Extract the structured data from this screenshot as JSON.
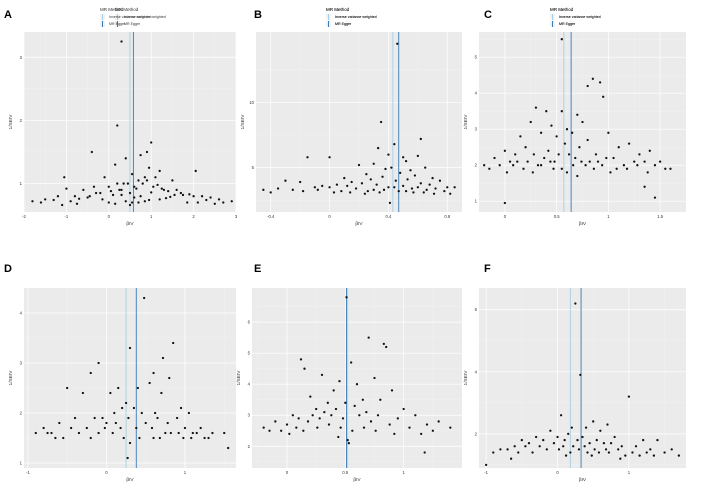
{
  "figure": {
    "legend_title": "MR Method",
    "legend_items": [
      "Inverse variance weighted",
      "MR Egger"
    ]
  },
  "colors": {
    "panel_bg": "#ebebeb",
    "grid_major": "#ffffff",
    "grid_minor": "#f4f4f4",
    "point": "#111111",
    "ivw_line": "#a9cfe3",
    "egger_line": "#3a7ab5",
    "label": "#333333"
  },
  "chart_data": [
    {
      "type": "scatter",
      "panel": "A",
      "xlabel": "βIV",
      "ylabel": "1/SEIV",
      "xlim": [
        -2,
        3
      ],
      "ylim": [
        0.55,
        3.4
      ],
      "xticks": [
        -2,
        -1,
        0,
        1,
        2,
        3
      ],
      "yticks": [
        1,
        2,
        3
      ],
      "ivw": 0.5,
      "egger": 0.58,
      "grid": true,
      "legend": "top",
      "x": [
        0.3,
        0.2,
        1.0,
        0.9,
        -0.4,
        0.75,
        0.4,
        0.15,
        -1.05,
        0.55,
        1.2,
        -0.1,
        2.05,
        1.5,
        -0.6,
        0.95,
        1.1,
        -1.5,
        -1.8,
        -0.8,
        -0.3,
        0.0,
        0.3,
        0.6,
        0.8,
        1.3,
        1.7,
        2.2,
        2.6,
        2.9,
        -1.2,
        -0.5,
        0.1,
        0.45,
        0.7,
        1.05,
        1.4,
        1.9,
        2.4,
        -0.9,
        -0.2,
        0.25,
        0.65,
        0.85,
        1.15,
        1.6,
        2.0,
        -1.3,
        -0.7,
        0.05,
        0.35,
        0.5,
        0.9,
        1.25,
        1.75,
        2.3,
        2.7,
        -0.45,
        0.2,
        0.6,
        1.0,
        -1.6,
        -1.0,
        -0.15,
        0.4,
        0.75,
        1.35,
        1.85,
        2.5,
        -0.35,
        0.15,
        0.55,
        0.95,
        1.45,
        2.1,
        -0.75,
        0.3,
        0.7,
        1.2,
        1.55,
        -1.1,
        0.0,
        0.5,
        0.85
      ],
      "y": [
        3.25,
        1.92,
        1.65,
        1.5,
        1.5,
        1.45,
        1.4,
        1.3,
        1.1,
        1.15,
        1.2,
        1.1,
        1.2,
        1.05,
        0.9,
        1.25,
        1.1,
        0.75,
        0.72,
        0.8,
        0.85,
        0.95,
        0.9,
        0.95,
        1.0,
        0.9,
        0.85,
        0.8,
        0.75,
        0.72,
        0.8,
        0.78,
        0.82,
        1.0,
        1.05,
        0.95,
        0.88,
        0.83,
        0.78,
        0.72,
        0.85,
        0.9,
        0.92,
        1.1,
        0.98,
        0.9,
        0.8,
        0.74,
        0.76,
        0.88,
        1.0,
        0.85,
        1.05,
        0.92,
        0.82,
        0.74,
        0.7,
        0.8,
        1.0,
        0.78,
        0.86,
        0.7,
        0.92,
        0.75,
        0.72,
        0.8,
        0.77,
        0.7,
        0.68,
        0.95,
        0.68,
        0.7,
        0.74,
        0.79,
        0.7,
        0.68,
        0.82,
        0.7,
        0.75,
        0.82,
        0.66,
        0.7,
        0.66,
        0.72
      ]
    },
    {
      "type": "scatter",
      "panel": "B",
      "xlabel": "βIV",
      "ylabel": "1/SEIV",
      "xlim": [
        -0.5,
        0.9
      ],
      "ylim": [
        1.6,
        15.4
      ],
      "xticks": [
        -0.4,
        0.0,
        0.4,
        0.8
      ],
      "yticks": [
        5,
        10
      ],
      "ivw": 0.43,
      "egger": 0.47,
      "grid": true,
      "legend": "top",
      "x": [
        0.46,
        0.35,
        0.44,
        0.62,
        0.33,
        0.5,
        0.4,
        0.6,
        -0.15,
        0.0,
        0.52,
        0.2,
        0.3,
        0.65,
        -0.3,
        -0.45,
        0.8,
        0.55,
        0.1,
        0.25,
        0.38,
        0.42,
        0.48,
        0.58,
        0.7,
        0.75,
        -0.2,
        -0.05,
        0.05,
        0.15,
        0.28,
        0.36,
        0.45,
        0.53,
        0.62,
        0.68,
        0.85,
        -0.35,
        -0.1,
        0.12,
        0.22,
        0.32,
        0.4,
        0.5,
        0.6,
        0.72,
        -0.25,
        0.0,
        0.18,
        0.3,
        0.44,
        0.56,
        0.66,
        0.78,
        -0.4,
        -0.08,
        0.08,
        0.26,
        0.37,
        0.52,
        0.64,
        0.82,
        0.34,
        0.47,
        0.57,
        0.24,
        0.14,
        0.03,
        -0.18,
        0.41,
        0.71
      ],
      "y": [
        14.5,
        8.5,
        6.8,
        7.2,
        6.5,
        5.8,
        6.0,
        5.9,
        5.8,
        5.8,
        5.5,
        5.2,
        5.3,
        5.0,
        4.0,
        3.3,
        3.5,
        4.8,
        4.2,
        4.5,
        4.9,
        5.0,
        4.6,
        4.4,
        4.2,
        4.0,
        3.9,
        3.6,
        3.7,
        3.9,
        4.1,
        4.3,
        4.0,
        4.1,
        3.8,
        3.7,
        3.5,
        3.4,
        3.5,
        3.6,
        3.8,
        3.7,
        3.5,
        3.6,
        3.5,
        3.4,
        3.3,
        3.5,
        3.4,
        3.3,
        3.5,
        3.4,
        3.3,
        3.2,
        3.1,
        3.3,
        3.2,
        3.2,
        3.3,
        3.2,
        3.1,
        3.0,
        3.1,
        3.2,
        3.1,
        3.0,
        3.1,
        3.1,
        3.2,
        2.3,
        3.0
      ]
    },
    {
      "type": "scatter",
      "panel": "C",
      "xlabel": "βIV",
      "ylabel": "1/SEIV",
      "xlim": [
        -0.25,
        1.75
      ],
      "ylim": [
        0.7,
        5.7
      ],
      "xticks": [
        0.0,
        0.5,
        1.0,
        1.5
      ],
      "yticks": [
        1,
        2,
        3,
        4,
        5
      ],
      "ivw": 0.57,
      "egger": 0.64,
      "grid": true,
      "legend": "top",
      "x": [
        0.55,
        0.85,
        0.8,
        0.92,
        0.95,
        0.3,
        0.55,
        0.4,
        0.7,
        0.75,
        0.25,
        0.45,
        0.6,
        0.65,
        0.35,
        0.15,
        0.5,
        0.0,
        1.0,
        1.2,
        1.4,
        -0.1,
        0.1,
        0.2,
        0.8,
        1.1,
        1.3,
        1.5,
        -0.2,
        0.05,
        0.28,
        0.42,
        0.58,
        0.72,
        0.88,
        1.05,
        1.25,
        1.45,
        -0.15,
        0.08,
        0.22,
        0.38,
        0.52,
        0.68,
        0.82,
        0.98,
        1.15,
        1.35,
        1.6,
        -0.05,
        0.12,
        0.32,
        0.48,
        0.62,
        0.78,
        0.9,
        1.08,
        1.28,
        0.18,
        0.35,
        0.44,
        0.55,
        0.66,
        0.74,
        0.86,
        0.94,
        1.02,
        1.18,
        1.38,
        1.55,
        0.02,
        0.27,
        0.47,
        0.6,
        0.0,
        0.7,
        1.35,
        1.45
      ],
      "y": [
        5.5,
        4.4,
        4.2,
        4.3,
        3.9,
        3.6,
        3.5,
        3.5,
        3.4,
        3.2,
        3.2,
        3.1,
        3.0,
        2.9,
        2.9,
        2.8,
        2.8,
        2.4,
        2.9,
        2.6,
        2.4,
        2.2,
        2.3,
        2.5,
        2.7,
        2.5,
        2.3,
        2.1,
        2.0,
        2.1,
        2.3,
        2.4,
        2.6,
        2.5,
        2.3,
        2.2,
        2.1,
        2.0,
        1.9,
        2.0,
        2.1,
        2.2,
        2.3,
        2.2,
        2.1,
        2.2,
        2.0,
        2.1,
        1.9,
        2.0,
        2.1,
        2.0,
        2.1,
        2.3,
        2.0,
        2.1,
        1.9,
        2.0,
        1.9,
        2.0,
        2.1,
        1.9,
        2.0,
        2.1,
        1.9,
        2.0,
        1.8,
        1.9,
        1.8,
        1.9,
        1.8,
        1.8,
        1.9,
        1.8,
        0.95,
        1.7,
        1.4,
        1.1
      ]
    },
    {
      "type": "scatter",
      "panel": "D",
      "xlabel": "βIV",
      "ylabel": "1/SEIV",
      "xlim": [
        -1.05,
        1.65
      ],
      "ylim": [
        0.9,
        4.5
      ],
      "xticks": [
        -1,
        0,
        1
      ],
      "yticks": [
        1,
        2,
        3,
        4
      ],
      "ivw": 0.25,
      "egger": 0.38,
      "grid": true,
      "legend": "top",
      "x": [
        0.48,
        0.85,
        0.3,
        0.72,
        0.6,
        -0.1,
        -0.2,
        0.55,
        0.8,
        0.4,
        0.15,
        0.05,
        0.7,
        -0.5,
        -0.3,
        0.95,
        1.05,
        -0.7,
        -0.9,
        0.25,
        0.35,
        0.45,
        0.1,
        -0.05,
        0.2,
        0.62,
        0.9,
        1.2,
        1.5,
        -0.8,
        -0.6,
        -0.4,
        -0.15,
        0.0,
        0.12,
        0.28,
        0.5,
        0.65,
        0.78,
        1.0,
        1.15,
        1.35,
        -0.75,
        -0.45,
        -0.25,
        -0.02,
        0.18,
        0.38,
        0.58,
        0.75,
        0.92,
        1.1,
        1.3,
        -0.55,
        -0.35,
        -0.1,
        0.08,
        0.22,
        0.42,
        0.6,
        0.82,
        0.98,
        1.25,
        -0.65,
        -0.2,
        0.3,
        0.68,
        1.08,
        0.27,
        1.55
      ],
      "y": [
        4.3,
        3.4,
        3.3,
        3.1,
        2.8,
        3.0,
        2.8,
        2.6,
        2.7,
        2.5,
        2.5,
        2.4,
        2.4,
        2.5,
        2.4,
        2.1,
        2.0,
        1.6,
        1.6,
        2.2,
        2.1,
        2.0,
        2.0,
        1.9,
        2.1,
        2.0,
        1.9,
        1.7,
        1.6,
        1.7,
        1.8,
        1.9,
        1.9,
        1.8,
        1.8,
        1.9,
        1.8,
        1.9,
        1.8,
        1.7,
        1.6,
        1.6,
        1.6,
        1.7,
        1.7,
        1.7,
        1.7,
        1.7,
        1.7,
        1.6,
        1.6,
        1.6,
        1.5,
        1.5,
        1.6,
        1.6,
        1.6,
        1.5,
        1.5,
        1.5,
        1.6,
        1.5,
        1.5,
        1.5,
        1.5,
        1.4,
        1.5,
        1.5,
        1.1,
        1.3
      ]
    },
    {
      "type": "scatter",
      "panel": "E",
      "xlabel": "βIV",
      "ylabel": "1/SEIV",
      "xlim": [
        -0.3,
        1.5
      ],
      "ylim": [
        1.3,
        7.1
      ],
      "xticks": [
        0.0,
        0.5,
        1.0
      ],
      "yticks": [
        2,
        3,
        4,
        5,
        6
      ],
      "ivw": 0.52,
      "egger": 0.51,
      "grid": true,
      "legend": "top",
      "x": [
        0.51,
        0.7,
        0.83,
        0.85,
        0.55,
        0.45,
        0.12,
        0.15,
        0.3,
        0.6,
        0.75,
        0.9,
        1.0,
        0.2,
        0.4,
        0.35,
        0.65,
        -0.1,
        -0.2,
        0.05,
        0.25,
        0.5,
        0.8,
        1.1,
        1.3,
        1.4,
        -0.15,
        0.0,
        0.1,
        0.22,
        0.32,
        0.42,
        0.58,
        0.68,
        0.78,
        0.95,
        1.2,
        -0.05,
        0.08,
        0.18,
        0.28,
        0.38,
        0.48,
        0.62,
        0.72,
        0.88,
        1.05,
        1.25,
        0.02,
        0.14,
        0.26,
        0.36,
        0.46,
        0.56,
        0.66,
        0.76,
        0.92,
        1.15,
        0.44,
        0.52,
        0.53,
        1.18
      ],
      "y": [
        6.8,
        5.5,
        5.3,
        5.2,
        4.7,
        4.1,
        4.8,
        4.5,
        4.3,
        4.0,
        4.2,
        3.8,
        3.2,
        3.6,
        3.8,
        3.4,
        3.5,
        2.8,
        2.6,
        3.0,
        3.2,
        3.4,
        3.5,
        3.0,
        2.8,
        2.6,
        2.5,
        2.7,
        2.9,
        3.0,
        3.1,
        3.2,
        3.3,
        3.1,
        3.0,
        2.9,
        2.7,
        2.5,
        2.6,
        2.8,
        2.9,
        3.0,
        2.9,
        3.0,
        2.8,
        2.7,
        2.6,
        2.5,
        2.4,
        2.5,
        2.6,
        2.7,
        2.6,
        2.5,
        2.6,
        2.5,
        2.4,
        2.4,
        2.3,
        2.2,
        2.1,
        1.8
      ]
    },
    {
      "type": "scatter",
      "panel": "F",
      "xlabel": "βIV",
      "ylabel": "1/SEIV",
      "xlim": [
        -1.1,
        1.8
      ],
      "ylim": [
        0.9,
        6.7
      ],
      "xticks": [
        -1,
        0,
        1
      ],
      "yticks": [
        2,
        4,
        6
      ],
      "ivw": 0.18,
      "egger": 0.33,
      "grid": true,
      "legend": "top",
      "x": [
        0.25,
        0.32,
        1.0,
        0.05,
        0.5,
        0.7,
        0.4,
        0.6,
        0.2,
        -0.1,
        -0.3,
        -0.5,
        0.15,
        0.35,
        0.8,
        1.2,
        1.4,
        -0.8,
        -0.9,
        -0.6,
        -0.4,
        -0.2,
        0.0,
        0.1,
        0.28,
        0.45,
        0.55,
        0.65,
        0.75,
        0.9,
        1.1,
        1.3,
        1.6,
        -0.7,
        -0.45,
        -0.25,
        -0.05,
        0.08,
        0.22,
        0.38,
        0.52,
        0.68,
        0.85,
        1.05,
        1.25,
        1.5,
        -0.55,
        -0.35,
        -0.15,
        0.02,
        0.18,
        0.3,
        0.42,
        0.58,
        0.72,
        0.95,
        1.15,
        1.35,
        1.7,
        -1.0,
        -0.65,
        0.12,
        0.48,
        0.88
      ],
      "y": [
        6.2,
        3.9,
        3.2,
        2.6,
        2.4,
        2.3,
        2.2,
        2.1,
        2.2,
        2.1,
        1.9,
        1.8,
        2.0,
        1.9,
        1.9,
        1.8,
        1.8,
        1.5,
        1.4,
        1.6,
        1.7,
        1.8,
        1.9,
        1.8,
        1.8,
        1.7,
        1.8,
        1.7,
        1.7,
        1.6,
        1.6,
        1.5,
        1.5,
        1.5,
        1.6,
        1.6,
        1.7,
        1.6,
        1.6,
        1.6,
        1.5,
        1.5,
        1.5,
        1.4,
        1.4,
        1.4,
        1.4,
        1.4,
        1.5,
        1.5,
        1.4,
        1.5,
        1.4,
        1.4,
        1.4,
        1.3,
        1.3,
        1.3,
        1.3,
        1.0,
        1.2,
        1.3,
        1.3,
        1.2
      ]
    }
  ]
}
